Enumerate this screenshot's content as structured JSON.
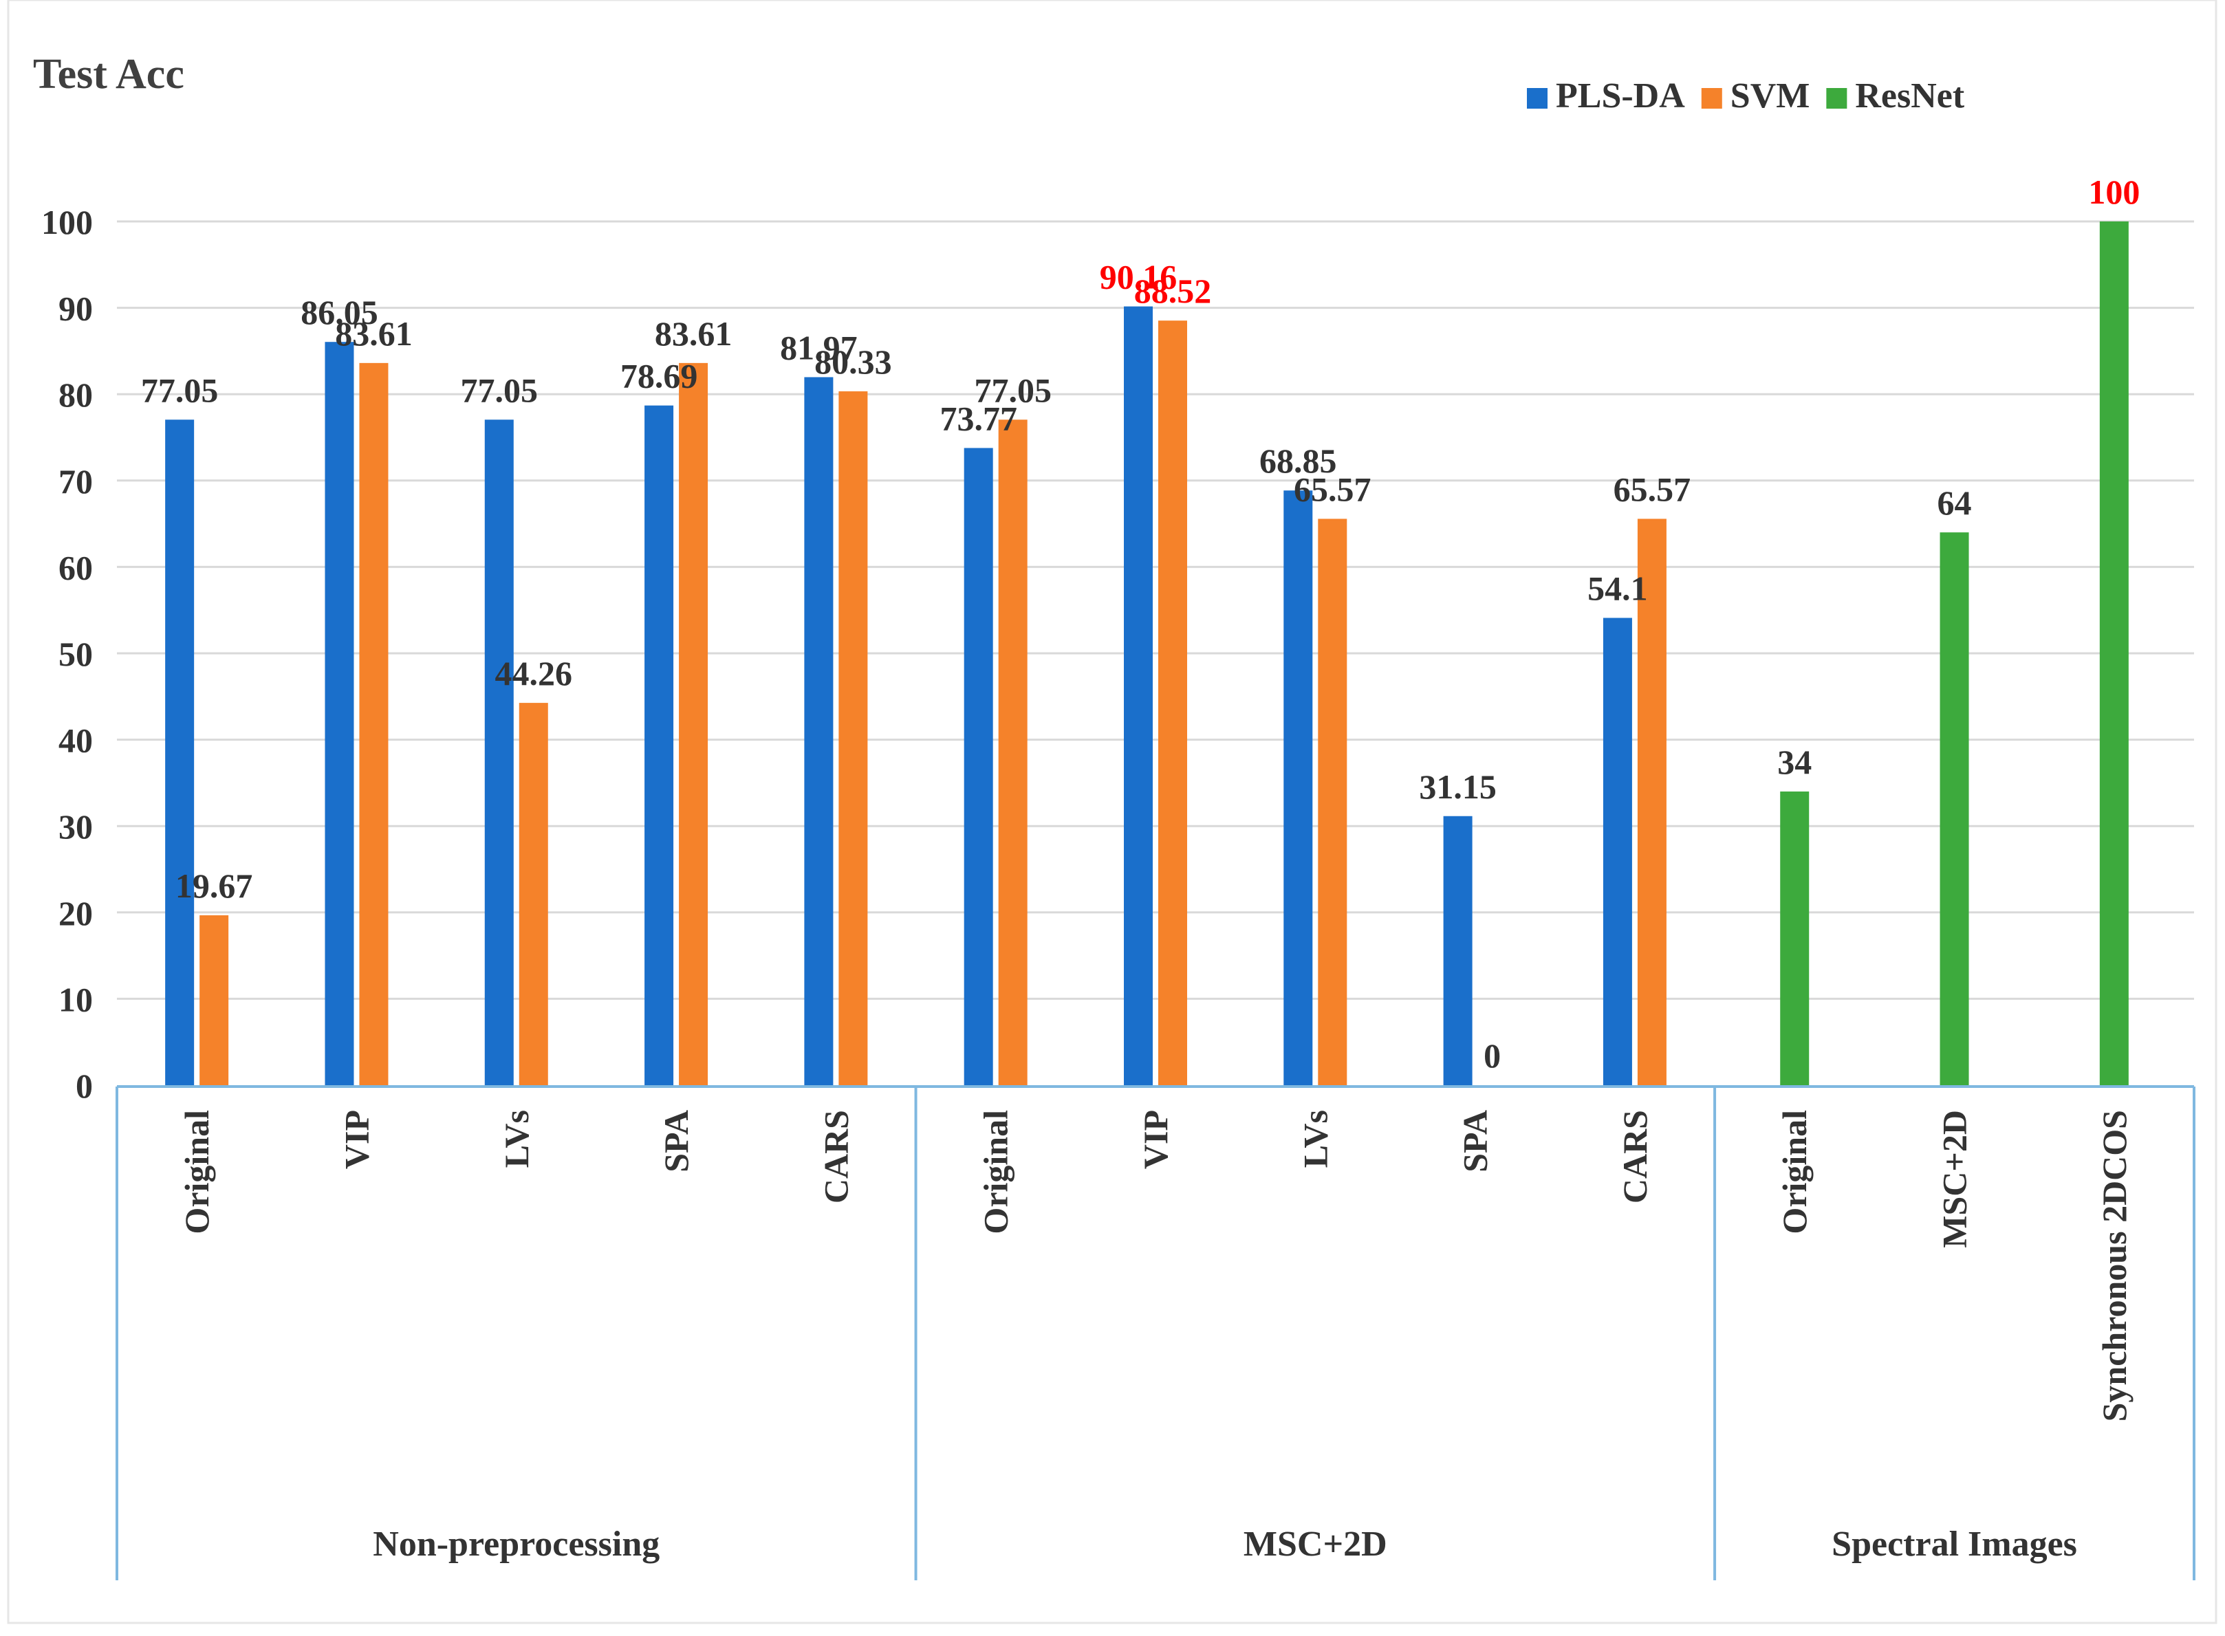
{
  "chart_data": {
    "type": "bar",
    "title": "Test Acc",
    "ylim": [
      0,
      100
    ],
    "yticks": [
      0,
      10,
      20,
      30,
      40,
      50,
      60,
      70,
      80,
      90,
      100
    ],
    "grid": true,
    "legend_position": "top-right",
    "series": [
      {
        "name": "PLS-DA",
        "color": "#1a6fcb"
      },
      {
        "name": "SVM",
        "color": "#f5822a"
      },
      {
        "name": "ResNet",
        "color": "#3daa3d"
      }
    ],
    "groups": [
      {
        "name": "Non-preprocessing",
        "categories": [
          {
            "label": "Original",
            "bars": [
              {
                "series": "PLS-DA",
                "value": 77.05
              },
              {
                "series": "SVM",
                "value": 19.67
              }
            ]
          },
          {
            "label": "VIP",
            "bars": [
              {
                "series": "PLS-DA",
                "value": 86.05
              },
              {
                "series": "SVM",
                "value": 83.61
              }
            ]
          },
          {
            "label": "LVs",
            "bars": [
              {
                "series": "PLS-DA",
                "value": 77.05
              },
              {
                "series": "SVM",
                "value": 44.26
              }
            ]
          },
          {
            "label": "SPA",
            "bars": [
              {
                "series": "PLS-DA",
                "value": 78.69
              },
              {
                "series": "SVM",
                "value": 83.61
              }
            ]
          },
          {
            "label": "CARS",
            "bars": [
              {
                "series": "PLS-DA",
                "value": 81.97
              },
              {
                "series": "SVM",
                "value": 80.33
              }
            ]
          }
        ]
      },
      {
        "name": "MSC+2D",
        "categories": [
          {
            "label": "Original",
            "bars": [
              {
                "series": "PLS-DA",
                "value": 73.77
              },
              {
                "series": "SVM",
                "value": 77.05
              }
            ]
          },
          {
            "label": "VIP",
            "bars": [
              {
                "series": "PLS-DA",
                "value": 90.16,
                "highlight": true
              },
              {
                "series": "SVM",
                "value": 88.52,
                "highlight": true
              }
            ]
          },
          {
            "label": "LVs",
            "bars": [
              {
                "series": "PLS-DA",
                "value": 68.85
              },
              {
                "series": "SVM",
                "value": 65.57
              }
            ]
          },
          {
            "label": "SPA",
            "bars": [
              {
                "series": "PLS-DA",
                "value": 31.15
              },
              {
                "series": "SVM",
                "value": 0
              }
            ]
          },
          {
            "label": "CARS",
            "bars": [
              {
                "series": "PLS-DA",
                "value": 54.1
              },
              {
                "series": "SVM",
                "value": 65.57
              }
            ]
          }
        ]
      },
      {
        "name": "Spectral Images",
        "categories": [
          {
            "label": "Original",
            "bars": [
              {
                "series": "ResNet",
                "value": 34
              }
            ]
          },
          {
            "label": "MSC+2D",
            "bars": [
              {
                "series": "ResNet",
                "value": 64
              }
            ]
          },
          {
            "label": "Synchronous 2DCOS",
            "bars": [
              {
                "series": "ResNet",
                "value": 100,
                "highlight": true
              }
            ]
          }
        ]
      }
    ],
    "highlight_color": "#ff0000",
    "label_color": "#333333",
    "grid_color": "#d9d9d9",
    "axis_color": "#7fb8e0"
  }
}
